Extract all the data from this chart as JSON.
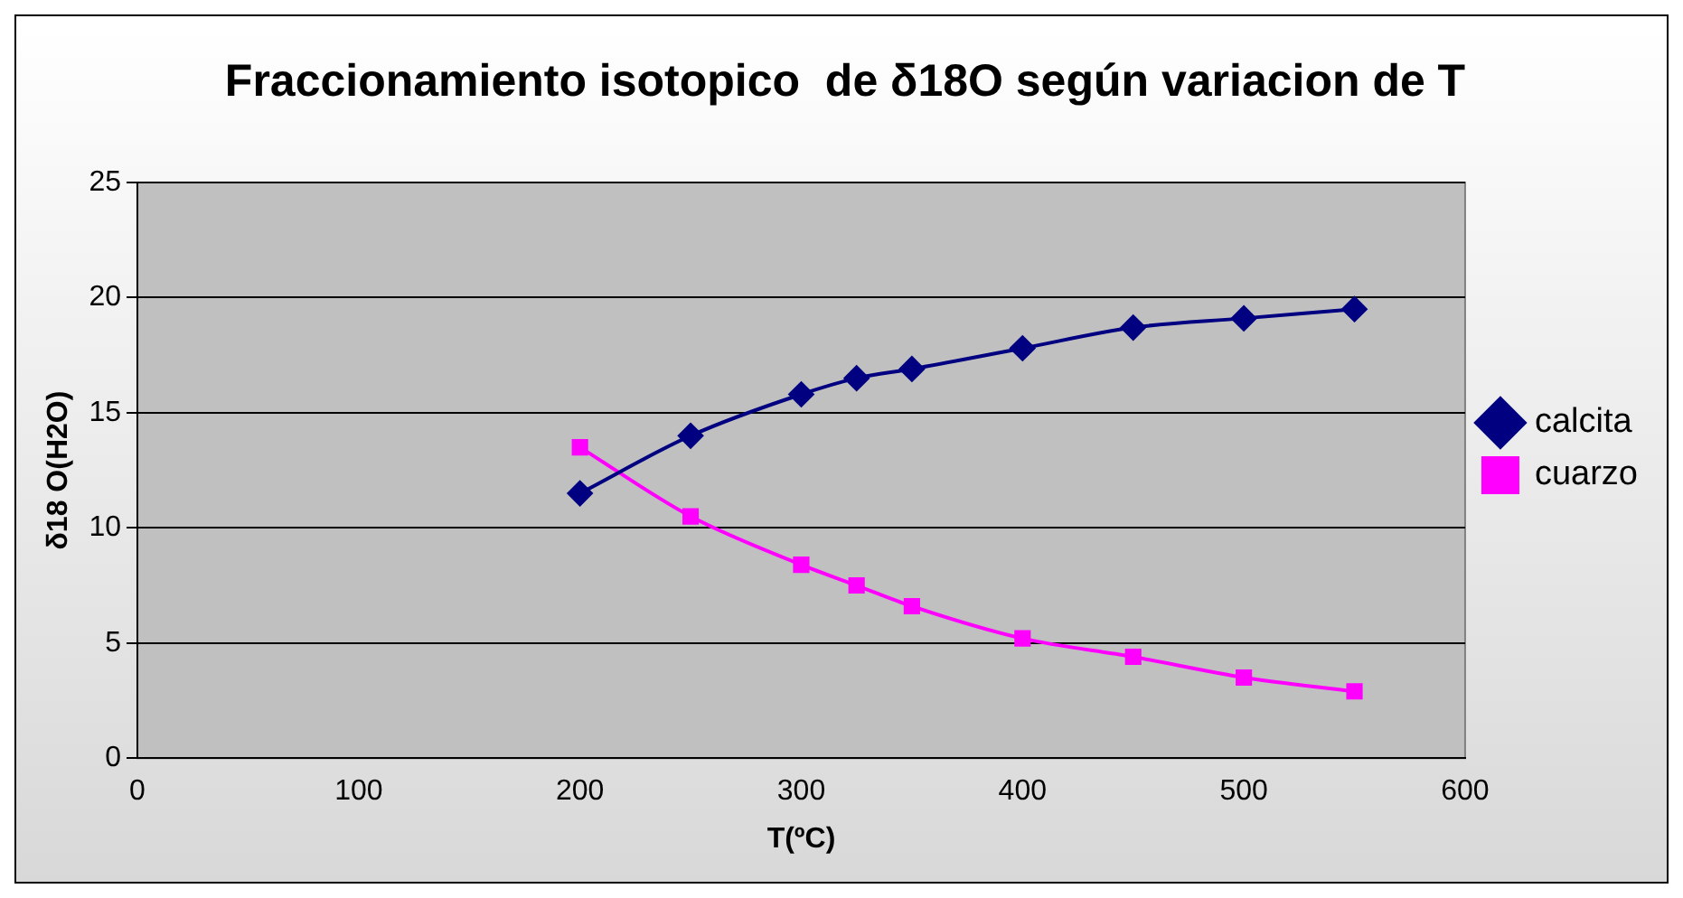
{
  "chart_data": {
    "type": "line",
    "title": "Fraccionamiento isotopico  de δ18O según variacion de T",
    "xlabel": "T(ºC)",
    "ylabel": "δ18 O(H2O)",
    "x": [
      200,
      250,
      300,
      325,
      350,
      400,
      450,
      500,
      550
    ],
    "series": [
      {
        "name": "calcita",
        "color": "#000080",
        "marker": "diamond",
        "values": [
          11.5,
          14.0,
          15.8,
          16.5,
          16.9,
          17.8,
          18.7,
          19.1,
          19.5
        ]
      },
      {
        "name": "cuarzo",
        "color": "#ff00ff",
        "marker": "square",
        "values": [
          13.5,
          10.5,
          8.4,
          7.5,
          6.6,
          5.2,
          4.4,
          3.5,
          2.9
        ]
      }
    ],
    "xlim": [
      0,
      600
    ],
    "xticks": [
      0,
      100,
      200,
      300,
      400,
      500,
      600
    ],
    "ylim": [
      0,
      25
    ],
    "yticks": [
      0,
      5,
      10,
      15,
      20,
      25
    ],
    "grid": "y",
    "legend": "right"
  }
}
